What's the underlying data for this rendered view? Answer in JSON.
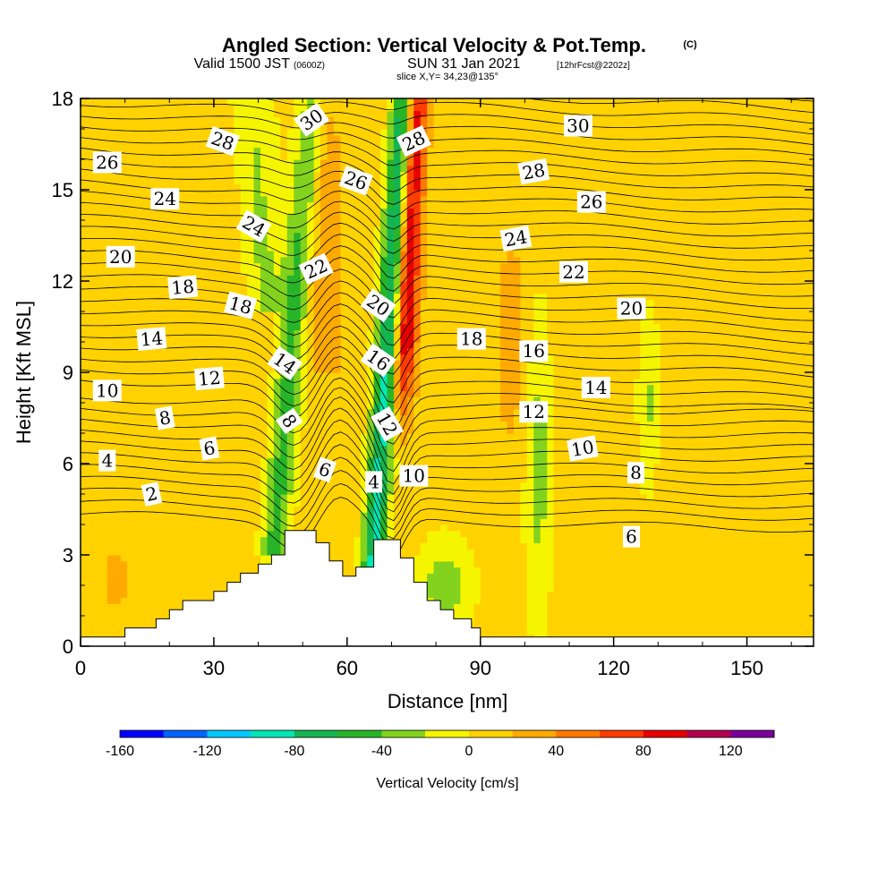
{
  "title": {
    "main": "Angled Section: Vertical Velocity & Pot.Temp.",
    "main_suffix": "(C)",
    "valid_prefix": "Valid 1500 JST",
    "valid_zulu": "(0600Z)",
    "valid_date": "SUN 31 Jan 2021",
    "valid_fcst": "[12hrFcst@2202z]",
    "slice": "slice X,Y= 34,23@135°"
  },
  "chart_data": {
    "type": "contour",
    "xlabel": "Distance [nm]",
    "ylabel": "Height [Kft MSL]",
    "xlim": [
      0,
      165
    ],
    "ylim": [
      0,
      18
    ],
    "xticks": [
      0,
      30,
      60,
      90,
      120,
      150
    ],
    "yticks": [
      0,
      3,
      6,
      9,
      12,
      15,
      18
    ],
    "colorbar": {
      "title": "Vertical Velocity [cm/s]",
      "min": -160,
      "max": 140,
      "step": 20,
      "tick_values": [
        -160,
        -120,
        -80,
        -40,
        0,
        40,
        80,
        120
      ],
      "tick_labels": [
        "-160",
        "-120",
        "-80",
        "-40",
        "0",
        "40",
        "80",
        "120"
      ],
      "colors": [
        "#0000ff",
        "#0064ff",
        "#00c8ff",
        "#00e6b4",
        "#14b450",
        "#28b428",
        "#82d21e",
        "#f5f500",
        "#ffd200",
        "#ffaa00",
        "#ff7800",
        "#ff3c00",
        "#e60000",
        "#b40050",
        "#78009b"
      ]
    },
    "terrain_profile": [
      [
        0,
        0.3
      ],
      [
        10,
        0.3
      ],
      [
        10,
        0.6
      ],
      [
        17,
        0.6
      ],
      [
        17,
        0.9
      ],
      [
        20,
        0.9
      ],
      [
        20,
        1.2
      ],
      [
        23,
        1.2
      ],
      [
        23,
        1.5
      ],
      [
        30,
        1.5
      ],
      [
        30,
        1.8
      ],
      [
        33,
        1.8
      ],
      [
        33,
        2.1
      ],
      [
        36,
        2.1
      ],
      [
        36,
        2.4
      ],
      [
        40,
        2.4
      ],
      [
        40,
        2.7
      ],
      [
        43,
        2.7
      ],
      [
        43,
        3.0
      ],
      [
        46,
        3.0
      ],
      [
        46,
        3.8
      ],
      [
        53,
        3.8
      ],
      [
        53,
        3.4
      ],
      [
        56,
        3.4
      ],
      [
        56,
        2.8
      ],
      [
        59,
        2.8
      ],
      [
        59,
        2.3
      ],
      [
        62,
        2.3
      ],
      [
        62,
        2.6
      ],
      [
        66,
        2.6
      ],
      [
        66,
        3.5
      ],
      [
        72,
        3.5
      ],
      [
        72,
        2.9
      ],
      [
        75,
        2.9
      ],
      [
        75,
        2.1
      ],
      [
        78,
        2.1
      ],
      [
        78,
        1.5
      ],
      [
        81,
        1.5
      ],
      [
        81,
        1.2
      ],
      [
        84,
        1.2
      ],
      [
        84,
        0.9
      ],
      [
        88,
        0.9
      ],
      [
        88,
        0.6
      ],
      [
        90,
        0.6
      ],
      [
        90,
        0.3
      ],
      [
        165,
        0.3
      ]
    ],
    "theta_contours": {
      "levels": [
        2,
        4,
        6,
        8,
        10,
        12,
        14,
        16,
        18,
        20,
        22,
        24,
        26,
        28,
        30
      ],
      "labels": [
        {
          "text": "2",
          "x": 16,
          "y": 5.0,
          "angle": -12
        },
        {
          "text": "4",
          "x": 6,
          "y": 6.1,
          "angle": 0
        },
        {
          "text": "6",
          "x": 29,
          "y": 6.5,
          "angle": -10
        },
        {
          "text": "8",
          "x": 19,
          "y": 7.5,
          "angle": -10
        },
        {
          "text": "10",
          "x": 6,
          "y": 8.4,
          "angle": 0
        },
        {
          "text": "12",
          "x": 29,
          "y": 8.8,
          "angle": -5
        },
        {
          "text": "14",
          "x": 16,
          "y": 10.1,
          "angle": -5
        },
        {
          "text": "18",
          "x": 23,
          "y": 11.8,
          "angle": -5
        },
        {
          "text": "20",
          "x": 9,
          "y": 12.8,
          "angle": 0
        },
        {
          "text": "24",
          "x": 19,
          "y": 14.7,
          "angle": 0
        },
        {
          "text": "26",
          "x": 6,
          "y": 15.9,
          "angle": 0
        },
        {
          "text": "28",
          "x": 32,
          "y": 16.6,
          "angle": 20
        },
        {
          "text": "24",
          "x": 39,
          "y": 13.8,
          "angle": 30
        },
        {
          "text": "18",
          "x": 36,
          "y": 11.2,
          "angle": 15
        },
        {
          "text": "14",
          "x": 46,
          "y": 9.3,
          "angle": 35
        },
        {
          "text": "8",
          "x": 47,
          "y": 7.4,
          "angle": 55
        },
        {
          "text": "6",
          "x": 55,
          "y": 5.8,
          "angle": 20
        },
        {
          "text": "30",
          "x": 52,
          "y": 17.3,
          "angle": -35
        },
        {
          "text": "26",
          "x": 62,
          "y": 15.3,
          "angle": 20
        },
        {
          "text": "22",
          "x": 53,
          "y": 12.4,
          "angle": -25
        },
        {
          "text": "20",
          "x": 67,
          "y": 11.2,
          "angle": 35
        },
        {
          "text": "16",
          "x": 67,
          "y": 9.4,
          "angle": 35
        },
        {
          "text": "12",
          "x": 69,
          "y": 7.3,
          "angle": 60
        },
        {
          "text": "4",
          "x": 66,
          "y": 5.4,
          "angle": 0
        },
        {
          "text": "10",
          "x": 75,
          "y": 5.6,
          "angle": 0
        },
        {
          "text": "28",
          "x": 75,
          "y": 16.6,
          "angle": -25
        },
        {
          "text": "18",
          "x": 88,
          "y": 10.1,
          "angle": 0
        },
        {
          "text": "24",
          "x": 98,
          "y": 13.4,
          "angle": -10
        },
        {
          "text": "28",
          "x": 102,
          "y": 15.6,
          "angle": -10
        },
        {
          "text": "16",
          "x": 102,
          "y": 9.7,
          "angle": 0
        },
        {
          "text": "12",
          "x": 102,
          "y": 7.7,
          "angle": 0
        },
        {
          "text": "30",
          "x": 112,
          "y": 17.1,
          "angle": 0
        },
        {
          "text": "26",
          "x": 115,
          "y": 14.6,
          "angle": 0
        },
        {
          "text": "22",
          "x": 111,
          "y": 12.3,
          "angle": 0
        },
        {
          "text": "20",
          "x": 124,
          "y": 11.1,
          "angle": 0
        },
        {
          "text": "14",
          "x": 116,
          "y": 8.5,
          "angle": 0
        },
        {
          "text": "10",
          "x": 113,
          "y": 6.5,
          "angle": -10
        },
        {
          "text": "8",
          "x": 125,
          "y": 5.7,
          "angle": 0
        },
        {
          "text": "6",
          "x": 124,
          "y": 3.6,
          "angle": 0
        }
      ]
    }
  }
}
